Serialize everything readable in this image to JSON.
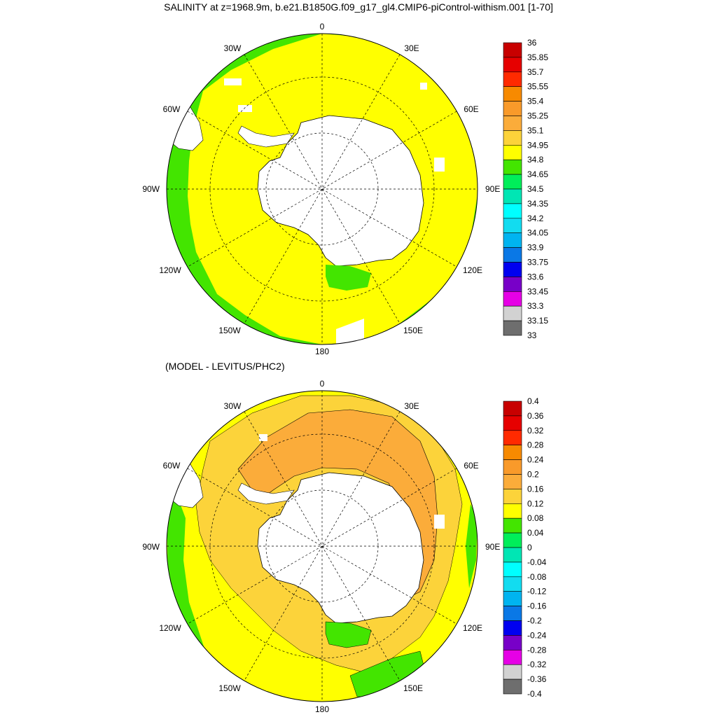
{
  "title": "SALINITY at z=1968.9m, b.e21.B1850G.f09_g17_gl4.CMIP6-piControl-withism.001 [1-70]",
  "subtitle": "(MODEL - LEVITUS/PHC2)",
  "map_labels": {
    "lon_0": "0",
    "lon_30e": "30E",
    "lon_60e": "60E",
    "lon_90e": "90E",
    "lon_120e": "120E",
    "lon_150e": "150E",
    "lon_180": "180",
    "lon_150w": "150W",
    "lon_120w": "120W",
    "lon_90w": "90W",
    "lon_60w": "60W",
    "lon_30w": "30W"
  },
  "colorbar1": {
    "labels": [
      "36",
      "35.85",
      "35.7",
      "35.55",
      "35.4",
      "35.25",
      "35.1",
      "34.95",
      "34.8",
      "34.65",
      "34.5",
      "34.35",
      "34.2",
      "34.05",
      "33.9",
      "33.75",
      "33.6",
      "33.45",
      "33.3",
      "33.15",
      "33"
    ],
    "colors": [
      "#c80000",
      "#e60000",
      "#ff2a00",
      "#f78a00",
      "#f99a2a",
      "#fbac3a",
      "#fcd33a",
      "#ffff00",
      "#43e500",
      "#00ee5a",
      "#00e6b4",
      "#00ffff",
      "#12dcf0",
      "#00b4f0",
      "#0a78e6",
      "#0000f0",
      "#7800c8",
      "#e600e6",
      "#d2d2d2",
      "#6e6e6e"
    ]
  },
  "colorbar2": {
    "labels": [
      "0.4",
      "0.36",
      "0.32",
      "0.28",
      "0.24",
      "0.2",
      "0.16",
      "0.12",
      "0.08",
      "0.04",
      "0",
      "-0.04",
      "-0.08",
      "-0.12",
      "-0.16",
      "-0.2",
      "-0.24",
      "-0.28",
      "-0.32",
      "-0.36",
      "-0.4"
    ],
    "colors": [
      "#c80000",
      "#e60000",
      "#ff2a00",
      "#f78a00",
      "#f99a2a",
      "#fbac3a",
      "#fcd33a",
      "#ffff00",
      "#43e500",
      "#00ee5a",
      "#00e6b4",
      "#00ffff",
      "#12dcf0",
      "#00b4f0",
      "#0a78e6",
      "#0000f0",
      "#7800c8",
      "#e600e6",
      "#d2d2d2",
      "#6e6e6e"
    ]
  },
  "colors": {
    "yellow": "#ffff00",
    "green": "#43e500",
    "orange": "#fbac3a",
    "light_orange": "#fcd33a",
    "land": "#ffffff"
  }
}
